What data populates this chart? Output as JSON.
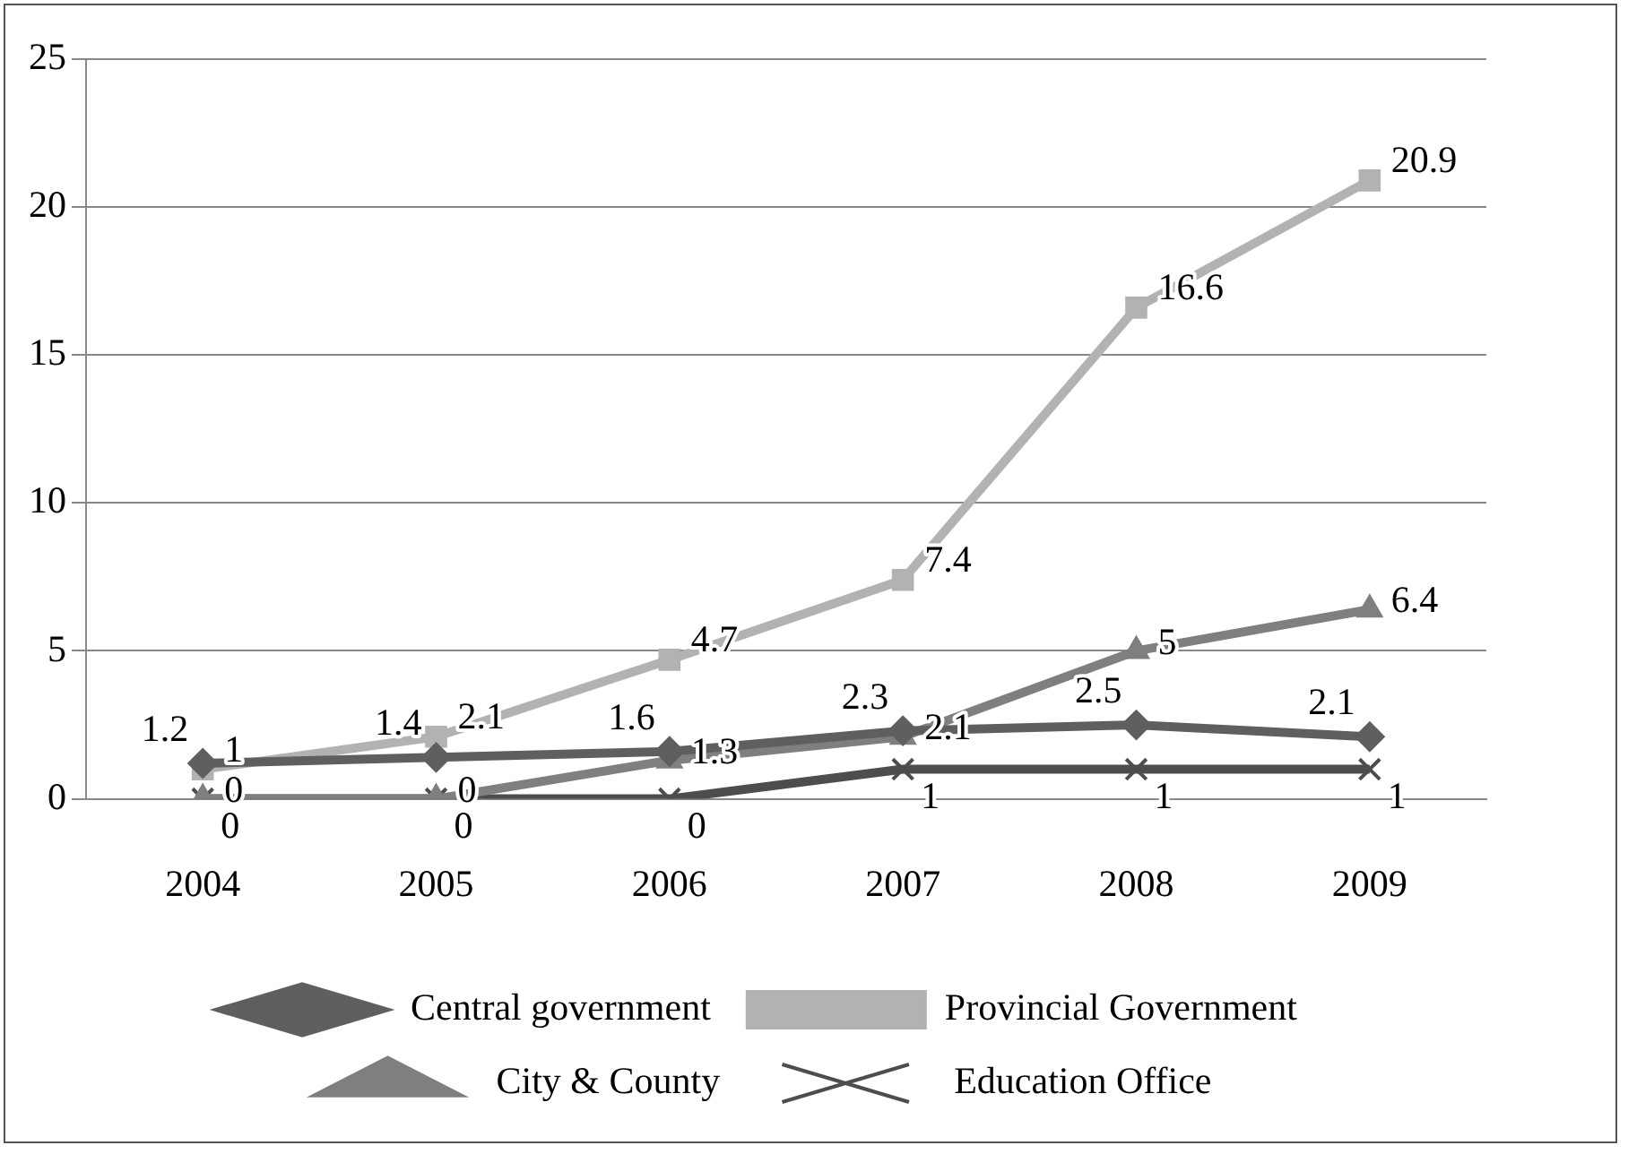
{
  "chart_data": {
    "type": "line",
    "categories": [
      "2004",
      "2005",
      "2006",
      "2007",
      "2008",
      "2009"
    ],
    "series": [
      {
        "name": "Central government",
        "color": "#5f5f5f",
        "marker": "diamond",
        "values": [
          1.2,
          1.4,
          1.6,
          2.3,
          2.5,
          2.1
        ]
      },
      {
        "name": "Provincial Government",
        "color": "#b2b2b2",
        "marker": "square",
        "values": [
          1,
          2.1,
          4.7,
          7.4,
          16.6,
          20.9
        ]
      },
      {
        "name": "City & County",
        "color": "#7f7f7f",
        "marker": "triangle",
        "values": [
          0,
          0,
          1.3,
          2.1,
          5,
          6.4
        ]
      },
      {
        "name": "Education Office",
        "color": "#4d4d4d",
        "marker": "cross",
        "values": [
          0,
          0,
          0,
          1,
          1,
          1
        ]
      }
    ],
    "ylim": [
      0,
      25
    ],
    "yticks": [
      0,
      5,
      10,
      15,
      20,
      25
    ],
    "grid": "y",
    "legend": "bottom",
    "data_labels": true
  }
}
